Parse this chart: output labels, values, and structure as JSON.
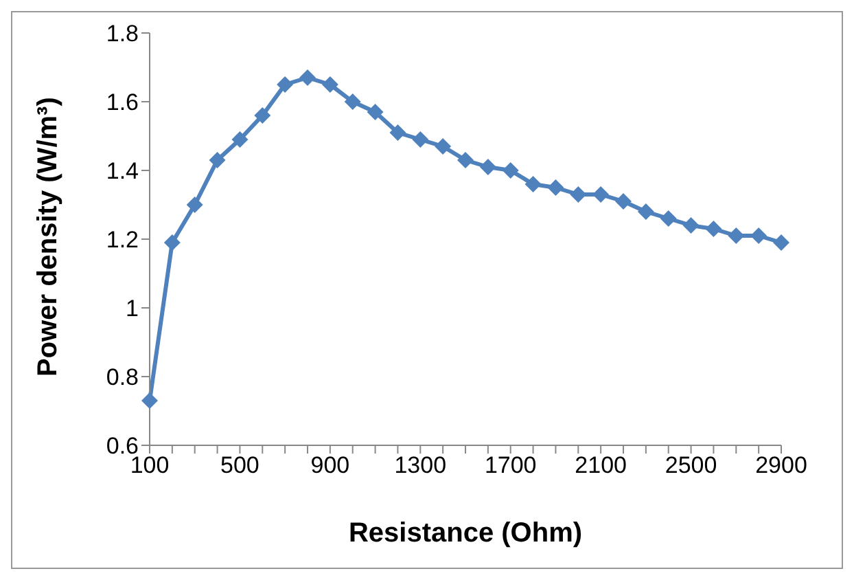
{
  "chart_data": {
    "type": "line",
    "xlabel": "Resistance (Ohm)",
    "ylabel": "Power density (W/m³)",
    "categories": [
      "100",
      null,
      null,
      null,
      "500",
      null,
      null,
      null,
      "900",
      null,
      null,
      null,
      "1300",
      null,
      null,
      null,
      "1700",
      null,
      null,
      null,
      "2100",
      null,
      null,
      null,
      "2500",
      null,
      null,
      null,
      "2900"
    ],
    "series": [
      {
        "color": "#4f81bd",
        "values": [
          0.73,
          1.19,
          1.3,
          1.43,
          1.49,
          1.56,
          1.65,
          1.67,
          1.65,
          1.6,
          1.57,
          1.51,
          1.49,
          1.47,
          1.43,
          1.41,
          1.4,
          1.36,
          1.35,
          1.33,
          1.33,
          1.31,
          1.28,
          1.26,
          1.24,
          1.23,
          1.21,
          1.21,
          1.19
        ]
      }
    ],
    "ylim": [
      0.6,
      1.8
    ],
    "yticks": [
      0.6,
      0.8,
      1,
      1.2,
      1.4,
      1.6,
      1.8
    ],
    "grid": false,
    "legend": false,
    "marker": "diamond",
    "line_style": "solid"
  }
}
